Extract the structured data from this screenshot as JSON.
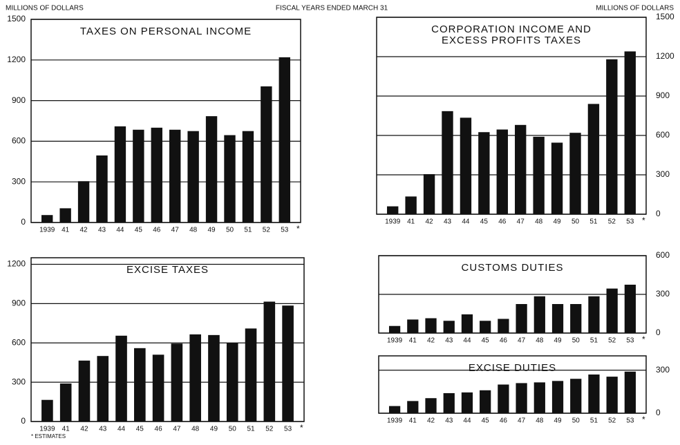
{
  "header": "FISCAL YEARS ENDED MARCH 31",
  "footnote": "* ESTIMATES",
  "chart_data": [
    {
      "type": "bar",
      "title": [
        "TAXES ON PERSONAL INCOME"
      ],
      "ylabel": "MILLIONS OF DOLLARS",
      "axis_side": "left",
      "categories": [
        "1939",
        "41",
        "42",
        "43",
        "44",
        "45",
        "46",
        "47",
        "48",
        "49",
        "50",
        "51",
        "52",
        "53"
      ],
      "estimate_mark": "*",
      "values": [
        55,
        105,
        305,
        495,
        710,
        685,
        700,
        685,
        675,
        785,
        645,
        675,
        1005,
        1220
      ],
      "color": "#111111",
      "ylim": [
        0,
        1500
      ],
      "yticks": [
        0,
        300,
        600,
        900,
        1200,
        1500
      ],
      "grid": true
    },
    {
      "type": "bar",
      "title": [
        "CORPORATION INCOME AND",
        "EXCESS PROFITS TAXES"
      ],
      "ylabel": "MILLIONS OF DOLLARS",
      "axis_side": "right",
      "categories": [
        "1939",
        "41",
        "42",
        "43",
        "44",
        "45",
        "46",
        "47",
        "48",
        "49",
        "50",
        "51",
        "52",
        "53"
      ],
      "estimate_mark": "*",
      "values": [
        60,
        135,
        305,
        785,
        735,
        625,
        645,
        680,
        590,
        545,
        620,
        840,
        1180,
        1240
      ],
      "color": "#111111",
      "ylim": [
        0,
        1500
      ],
      "yticks": [
        0,
        300,
        600,
        900,
        1200,
        1500
      ],
      "grid": true
    },
    {
      "type": "bar",
      "title": [
        "EXCISE TAXES"
      ],
      "axis_side": "left",
      "categories": [
        "1939",
        "41",
        "42",
        "43",
        "44",
        "45",
        "46",
        "47",
        "48",
        "49",
        "50",
        "51",
        "52",
        "53"
      ],
      "estimate_mark": "*",
      "values": [
        165,
        290,
        465,
        500,
        655,
        560,
        510,
        595,
        665,
        660,
        600,
        710,
        915,
        885
      ],
      "color": "#111111",
      "ylim": [
        0,
        1250
      ],
      "yticks": [
        0,
        300,
        600,
        900,
        1200
      ],
      "grid": true
    },
    {
      "type": "bar",
      "title": [
        "CUSTOMS DUTIES"
      ],
      "axis_side": "right",
      "categories": [
        "1939",
        "41",
        "42",
        "43",
        "44",
        "45",
        "46",
        "47",
        "48",
        "49",
        "50",
        "51",
        "52",
        "53"
      ],
      "estimate_mark": "*",
      "values": [
        55,
        105,
        115,
        95,
        145,
        95,
        110,
        225,
        285,
        225,
        225,
        285,
        345,
        375
      ],
      "color": "#111111",
      "ylim": [
        0,
        600
      ],
      "yticks": [
        0,
        300,
        600
      ],
      "grid": true
    },
    {
      "type": "bar",
      "title": [
        "EXCISE DUTIES"
      ],
      "axis_side": "right",
      "categories": [
        "1939",
        "41",
        "42",
        "43",
        "44",
        "45",
        "46",
        "47",
        "48",
        "49",
        "50",
        "51",
        "52",
        "53"
      ],
      "estimate_mark": "*",
      "values": [
        50,
        85,
        105,
        140,
        145,
        160,
        200,
        210,
        215,
        225,
        240,
        270,
        255,
        290
      ],
      "color": "#111111",
      "ylim": [
        0,
        400
      ],
      "yticks": [
        0,
        300
      ],
      "grid": true
    }
  ]
}
